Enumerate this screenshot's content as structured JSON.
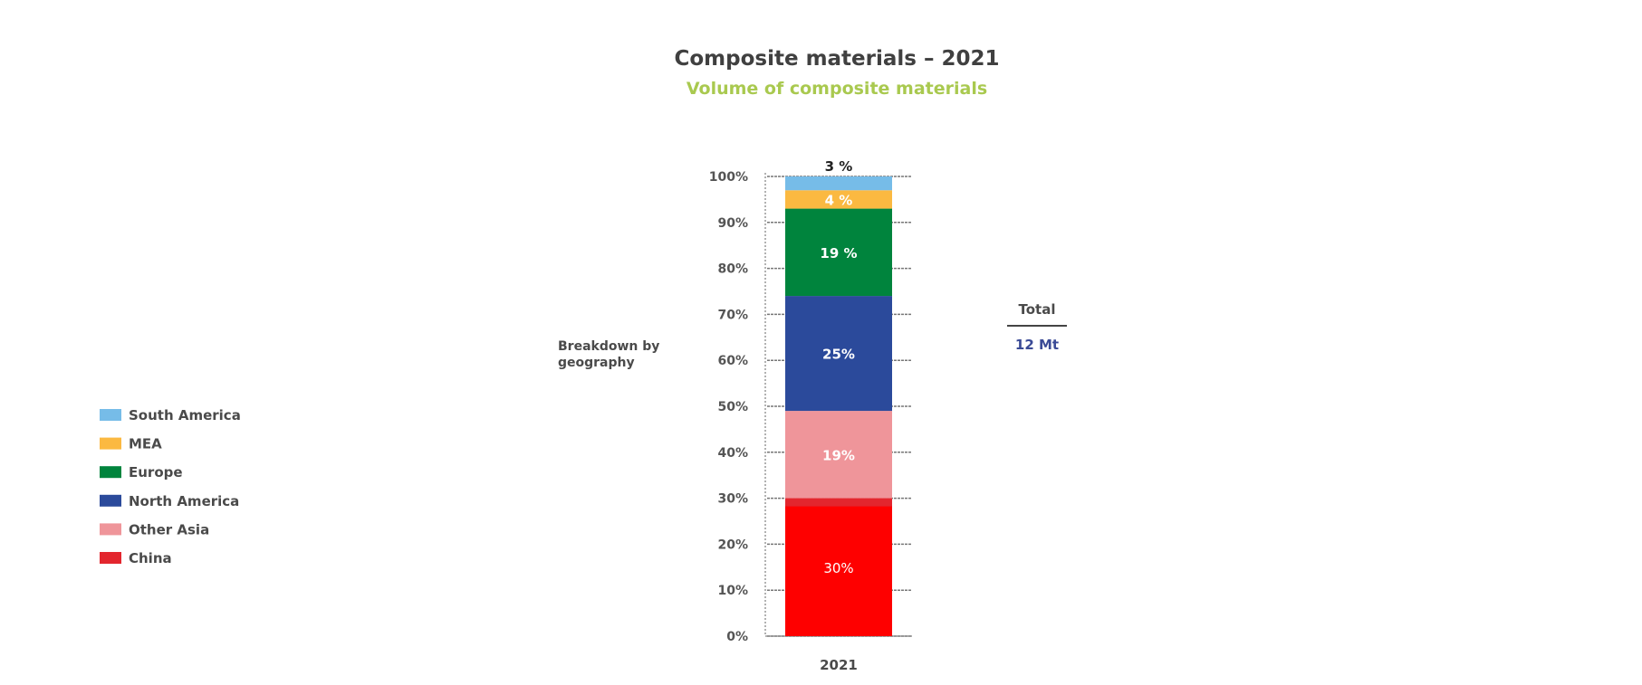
{
  "chart_data": {
    "type": "bar",
    "stacked": true,
    "title": "Composite materials – 2021",
    "subtitle": "Volume of composite materials",
    "ylabel": "Breakdown by geography",
    "categories": [
      "2021"
    ],
    "ylim": [
      0,
      100
    ],
    "yticks": [
      "0%",
      "10%",
      "20%",
      "30%",
      "40%",
      "50%",
      "60%",
      "70%",
      "80%",
      "90%",
      "100%"
    ],
    "series": [
      {
        "name": "China",
        "values": [
          30
        ],
        "label": "30%",
        "color": "#fe0000"
      },
      {
        "name": "Other Asia",
        "values": [
          19
        ],
        "label": "19%",
        "color": "#ef959a"
      },
      {
        "name": "North America",
        "values": [
          25
        ],
        "label": "25%",
        "color": "#2b4a9b"
      },
      {
        "name": "Europe",
        "values": [
          19
        ],
        "label": "19 %",
        "color": "#00843d"
      },
      {
        "name": "MEA",
        "values": [
          4
        ],
        "label": "4 %",
        "color": "#fbb941"
      },
      {
        "name": "South America",
        "values": [
          3
        ],
        "label": "3 %",
        "color": "#76bce8"
      }
    ],
    "legend": {
      "placement": "left",
      "order": [
        "South America",
        "MEA",
        "Europe",
        "North America",
        "Other Asia",
        "China"
      ]
    },
    "total": {
      "label": "Total",
      "value": "12 Mt"
    }
  },
  "colors": {
    "title": "#404040",
    "subtitle": "#a9c94f",
    "total_value": "#3a4a96",
    "legend_china": "#e3262e"
  }
}
